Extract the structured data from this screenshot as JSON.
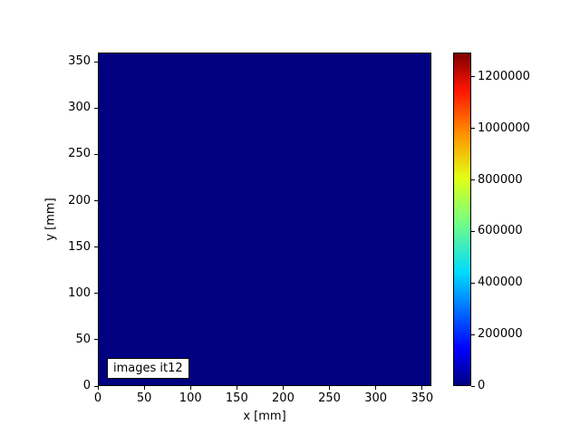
{
  "chart_data": {
    "type": "heatmap",
    "title": "",
    "xlabel": "x [mm]",
    "ylabel": "y [mm]",
    "xlim": [
      0,
      360
    ],
    "ylim": [
      0,
      360
    ],
    "x_ticks": [
      0,
      50,
      100,
      150,
      200,
      250,
      300,
      350
    ],
    "y_ticks": [
      0,
      50,
      100,
      150,
      200,
      250,
      300,
      350
    ],
    "annotation": "images it12",
    "uniform_value": 0,
    "heatmap_fill_color": "#000080",
    "grid": false,
    "colorbar": {
      "position": "right",
      "colormap": "jet",
      "vmin": 0,
      "vmax": 1295000,
      "ticks": [
        0,
        200000,
        400000,
        600000,
        800000,
        1000000,
        1200000
      ],
      "gradient_stops_bottom_to_top": [
        {
          "pos": 0.0,
          "color": "#000080"
        },
        {
          "pos": 0.11,
          "color": "#0000ff"
        },
        {
          "pos": 0.34,
          "color": "#00dbff"
        },
        {
          "pos": 0.5,
          "color": "#7bff7b"
        },
        {
          "pos": 0.625,
          "color": "#e2ff14"
        },
        {
          "pos": 0.75,
          "color": "#ff9700"
        },
        {
          "pos": 0.89,
          "color": "#ff1300"
        },
        {
          "pos": 1.0,
          "color": "#800000"
        }
      ]
    }
  }
}
